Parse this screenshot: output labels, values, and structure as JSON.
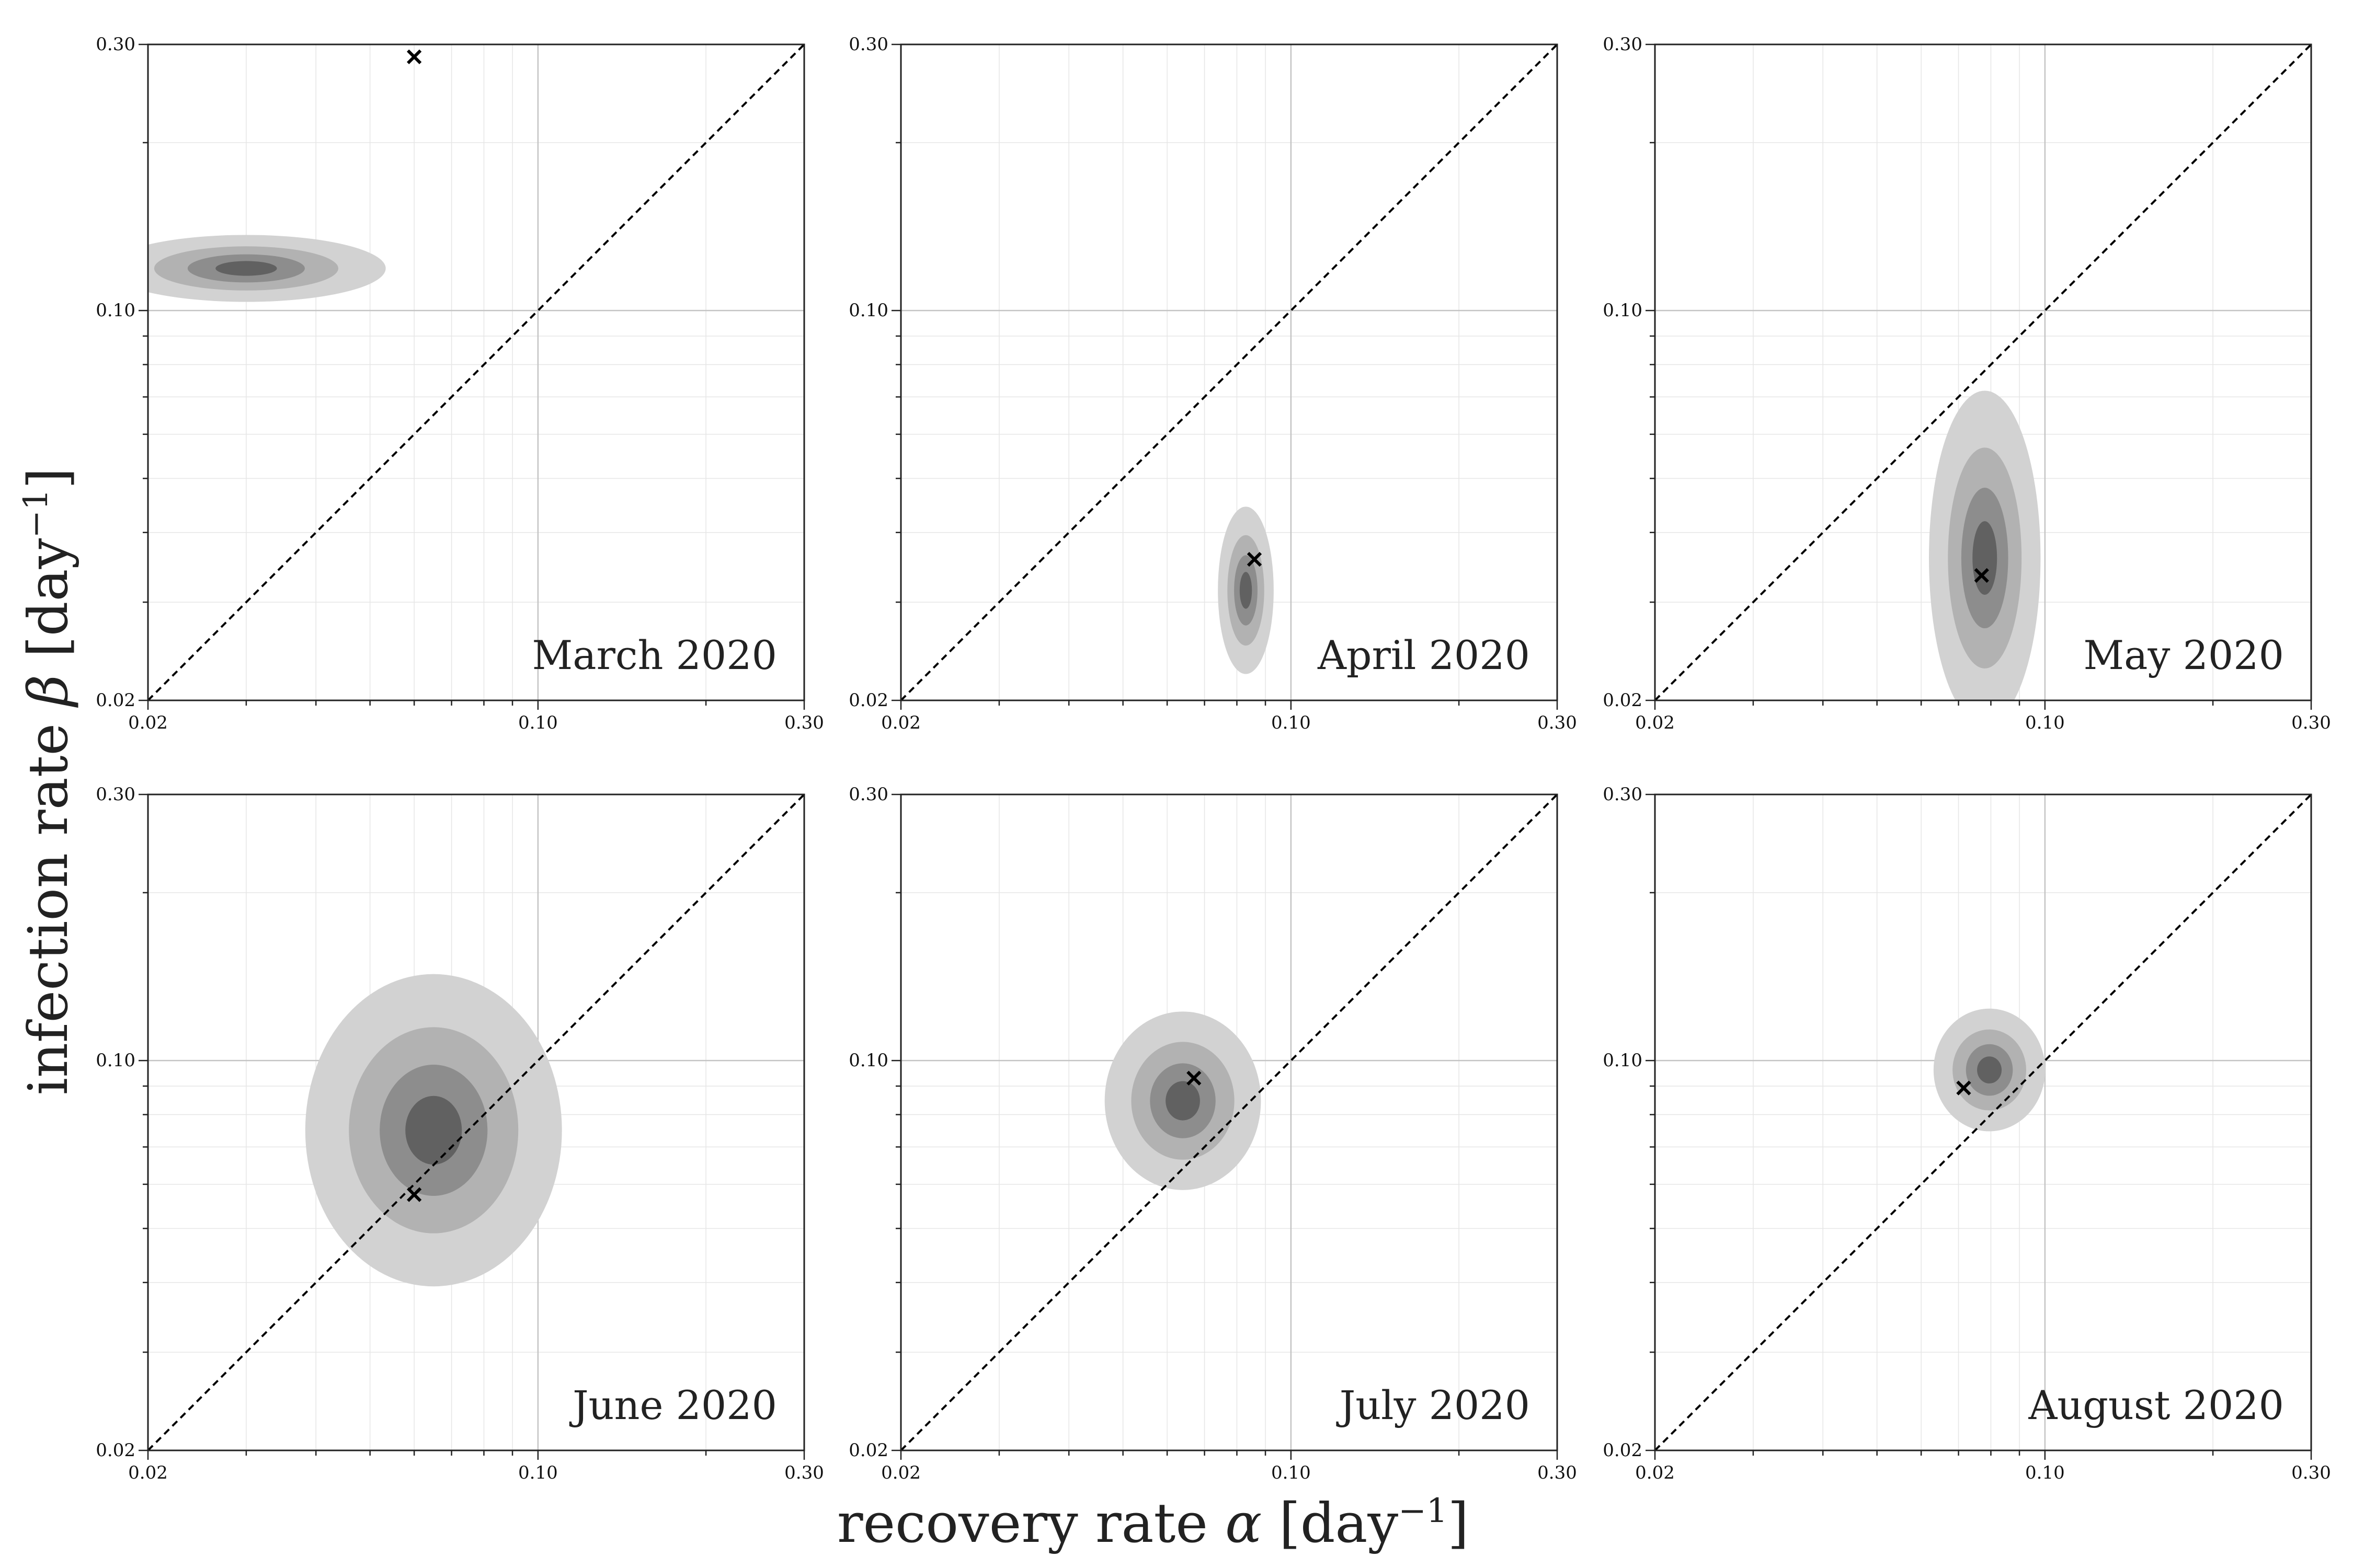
{
  "figure": {
    "xlabel_main": "recovery rate ",
    "xlabel_symbol": "α",
    "xlabel_unit": " [day",
    "xlabel_exp": "−1",
    "xlabel_close": "]",
    "ylabel_main": "infection rate ",
    "ylabel_symbol": "β",
    "ylabel_unit": " [day",
    "ylabel_exp": "−1",
    "ylabel_close": "]"
  },
  "chart_data": [
    {
      "type": "scatter",
      "title": "March 2020",
      "xscale": "log",
      "yscale": "log",
      "xlim": [
        0.02,
        0.3
      ],
      "ylim": [
        0.02,
        0.3
      ],
      "xticks": [
        "0.02",
        "0.10",
        "0.30"
      ],
      "yticks": [
        "0.02",
        "0.10",
        "0.30"
      ],
      "grid": true,
      "reference_line": "α = β (dashed)",
      "posterior": {
        "alpha": 0.03,
        "beta": 0.119,
        "spread_alpha": 0.25,
        "spread_beta": 0.06
      },
      "marker": {
        "shape": "x",
        "alpha": 0.06,
        "beta": 0.285
      }
    },
    {
      "type": "scatter",
      "title": "April 2020",
      "xscale": "log",
      "yscale": "log",
      "xlim": [
        0.02,
        0.3
      ],
      "ylim": [
        0.02,
        0.3
      ],
      "xticks": [
        "0.02",
        "0.10",
        "0.30"
      ],
      "yticks": [
        "0.02",
        "0.10",
        "0.30"
      ],
      "grid": true,
      "reference_line": "α = β (dashed)",
      "posterior": {
        "alpha": 0.083,
        "beta": 0.0315,
        "spread_alpha": 0.05,
        "spread_beta": 0.15
      },
      "marker": {
        "shape": "x",
        "alpha": 0.086,
        "beta": 0.0358
      }
    },
    {
      "type": "scatter",
      "title": "May 2020",
      "xscale": "log",
      "yscale": "log",
      "xlim": [
        0.02,
        0.3
      ],
      "ylim": [
        0.02,
        0.3
      ],
      "xticks": [
        "0.02",
        "0.10",
        "0.30"
      ],
      "yticks": [
        "0.02",
        "0.10",
        "0.30"
      ],
      "grid": true,
      "reference_line": "α = β (dashed)",
      "posterior": {
        "alpha": 0.078,
        "beta": 0.036,
        "spread_alpha": 0.1,
        "spread_beta": 0.3
      },
      "marker": {
        "shape": "x",
        "alpha": 0.077,
        "beta": 0.0335
      }
    },
    {
      "type": "scatter",
      "title": "June 2020",
      "xscale": "log",
      "yscale": "log",
      "xlim": [
        0.02,
        0.3
      ],
      "ylim": [
        0.02,
        0.3
      ],
      "xticks": [
        "0.02",
        "0.10",
        "0.30"
      ],
      "yticks": [
        "0.02",
        "0.10",
        "0.30"
      ],
      "grid": true,
      "reference_line": "α = β (dashed)",
      "posterior": {
        "alpha": 0.065,
        "beta": 0.075,
        "spread_alpha": 0.23,
        "spread_beta": 0.28
      },
      "marker": {
        "shape": "x",
        "alpha": 0.06,
        "beta": 0.0575
      }
    },
    {
      "type": "scatter",
      "title": "July 2020",
      "xscale": "log",
      "yscale": "log",
      "xlim": [
        0.02,
        0.3
      ],
      "ylim": [
        0.02,
        0.3
      ],
      "xticks": [
        "0.02",
        "0.10",
        "0.30"
      ],
      "yticks": [
        "0.02",
        "0.10",
        "0.30"
      ],
      "grid": true,
      "reference_line": "α = β (dashed)",
      "posterior": {
        "alpha": 0.064,
        "beta": 0.0847,
        "spread_alpha": 0.14,
        "spread_beta": 0.16
      },
      "marker": {
        "shape": "x",
        "alpha": 0.067,
        "beta": 0.093
      }
    },
    {
      "type": "scatter",
      "title": "August 2020",
      "xscale": "log",
      "yscale": "log",
      "xlim": [
        0.02,
        0.3
      ],
      "ylim": [
        0.02,
        0.3
      ],
      "xticks": [
        "0.02",
        "0.10",
        "0.30"
      ],
      "yticks": [
        "0.02",
        "0.10",
        "0.30"
      ],
      "grid": true,
      "reference_line": "α = β (dashed)",
      "posterior": {
        "alpha": 0.0795,
        "beta": 0.0962,
        "spread_alpha": 0.1,
        "spread_beta": 0.11
      },
      "marker": {
        "shape": "x",
        "alpha": 0.0715,
        "beta": 0.0893
      }
    }
  ]
}
